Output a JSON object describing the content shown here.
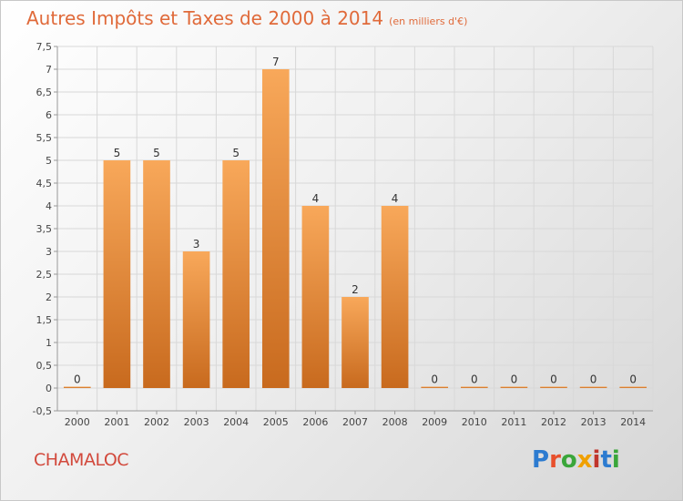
{
  "header": {
    "title": "Autres Impôts et Taxes de 2000 à 2014",
    "unit": "(en milliers d'€)"
  },
  "footer": {
    "commune": "CHAMALOC",
    "logo_text": "Proxiti",
    "logo_colors": [
      "#2c7bd0",
      "#e8502c",
      "#3aa63a",
      "#f0a000",
      "#c0352c",
      "#2c7bd0",
      "#3aa63a"
    ]
  },
  "colors": {
    "bar_light": "#f8a85a",
    "bar_dark": "#c86a1e",
    "axis": "#999999",
    "grid": "#d8d8d8",
    "title": "#e06a3a"
  },
  "chart_data": {
    "type": "bar",
    "title": "Autres Impôts et Taxes de 2000 à 2014",
    "subtitle": "(en milliers d'€)",
    "categories": [
      "2000",
      "2001",
      "2002",
      "2003",
      "2004",
      "2005",
      "2006",
      "2007",
      "2008",
      "2009",
      "2010",
      "2011",
      "2012",
      "2013",
      "2014"
    ],
    "values": [
      0,
      5,
      5,
      3,
      5,
      7,
      4,
      2,
      4,
      0,
      0,
      0,
      0,
      0,
      0
    ],
    "data_labels": [
      "0",
      "5",
      "5",
      "3",
      "5",
      "7",
      "4",
      "2",
      "4",
      "0",
      "0",
      "0",
      "0",
      "0",
      "0"
    ],
    "yticks": [
      -0.5,
      0,
      0.5,
      1,
      1.5,
      2,
      2.5,
      3,
      3.5,
      4,
      4.5,
      5,
      5.5,
      6,
      6.5,
      7,
      7.5
    ],
    "ytick_labels": [
      "-0,5",
      "0",
      "0,5",
      "1",
      "1,5",
      "2",
      "2,5",
      "3",
      "3,5",
      "4",
      "4,5",
      "5",
      "5,5",
      "6",
      "6,5",
      "7",
      "7,5"
    ],
    "ylim": [
      -0.5,
      7.5
    ],
    "xlabel": "",
    "ylabel": "",
    "grid": true,
    "legend": "none"
  }
}
